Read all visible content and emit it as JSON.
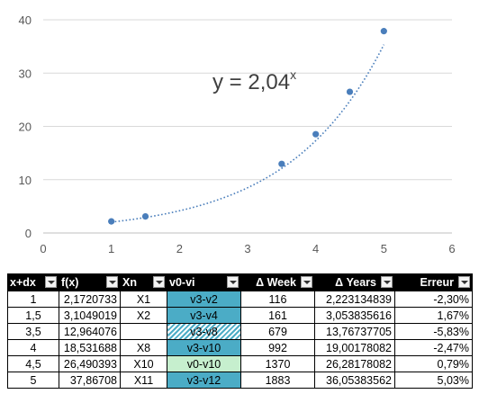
{
  "chart_data": {
    "type": "scatter",
    "x": [
      1,
      1.5,
      3.5,
      4,
      4.5,
      5
    ],
    "y": [
      2.1720733,
      3.1049019,
      12.964076,
      18.531688,
      26.490393,
      37.86708
    ],
    "trendline": {
      "type": "exponential",
      "base": 2.04,
      "label": "y = 2,04",
      "exponent": "x"
    },
    "xlim": [
      0,
      6
    ],
    "ylim": [
      0,
      40
    ],
    "xticks": [
      "0",
      "1",
      "2",
      "3",
      "4",
      "5",
      "6"
    ],
    "yticks": [
      "0",
      "10",
      "20",
      "30",
      "40"
    ],
    "grid": "horizontal",
    "point_color": "#4a7ebb"
  },
  "table": {
    "headers": [
      "x+dx",
      "f(x)",
      "Xn",
      "v0-vi",
      "Δ Week",
      "Δ Years",
      "Erreur"
    ],
    "rows": [
      [
        "1",
        "2,1720733",
        "X1",
        "v3-v2",
        "116",
        "2,223134839",
        "-2,30%"
      ],
      [
        "1,5",
        "3,1049019",
        "X2",
        "v3-v4",
        "161",
        "3,053835616",
        "1,67%"
      ],
      [
        "3,5",
        "12,964076",
        "",
        "v3-v8",
        "679",
        "13,76737705",
        "-5,83%"
      ],
      [
        "4",
        "18,531688",
        "X8",
        "v3-v10",
        "992",
        "19,00178082",
        "-2,47%"
      ],
      [
        "4,5",
        "26,490393",
        "X10",
        "v0-v10",
        "1370",
        "26,28178082",
        "0,79%"
      ],
      [
        "5",
        "37,86708",
        "X11",
        "v3-v12",
        "1883",
        "36,05383562",
        "5,03%"
      ]
    ],
    "v_styles": [
      "blue",
      "blue",
      "hatch",
      "blue",
      "green",
      "blue"
    ]
  }
}
